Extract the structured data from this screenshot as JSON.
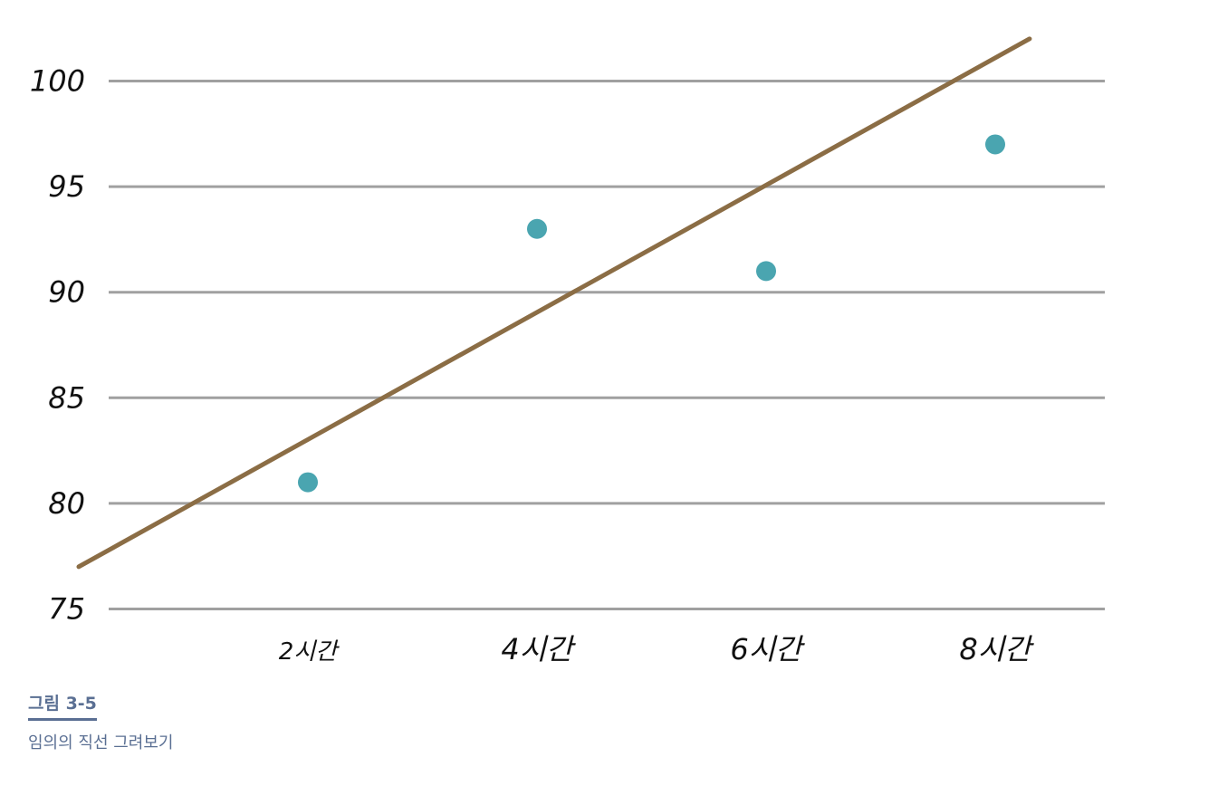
{
  "chart_data": {
    "type": "scatter",
    "x_categories": [
      "2시간",
      "4시간",
      "6시간",
      "8시간"
    ],
    "y_ticks": [
      100,
      95,
      90,
      85,
      80,
      75
    ],
    "ylim": [
      75,
      100
    ],
    "grid": true,
    "series": [
      {
        "kind": "points",
        "values": [
          81,
          93,
          91,
          97
        ]
      }
    ],
    "line": {
      "kind": "arbitrary-line",
      "start": {
        "x_hours": 0,
        "y": 77
      },
      "end": {
        "x_hours": 8.3,
        "y": 102
      }
    },
    "colors": {
      "points": "#4aa5b0",
      "line": "#8b6d45",
      "grid": "#a0a0a0"
    }
  },
  "figure": {
    "number": "그림 3-5",
    "caption": "임의의 직선 그려보기"
  }
}
